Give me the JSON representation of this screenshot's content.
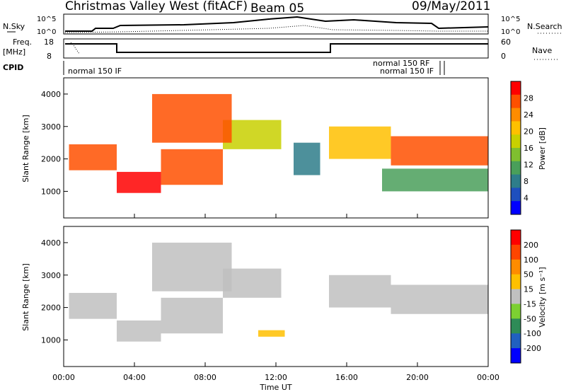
{
  "header": {
    "site": "Christmas Valley West (fitACF)",
    "beam": "Beam 05",
    "date": "09/May/2011"
  },
  "nsky_panel": {
    "left_label": "N.Sky",
    "right_label": "N.Search",
    "ticks": [
      "10^5",
      "10^0"
    ]
  },
  "freq_panel": {
    "left_label_1": "Freq.",
    "left_label_2": "[MHz]",
    "right_label": "Nave",
    "left_ticks": [
      "18",
      "8"
    ],
    "right_ticks": [
      "60",
      "0"
    ]
  },
  "cpid_panel": {
    "label": "CPID",
    "modes": [
      "normal 150 IF",
      "normal 150 RF",
      "normal 150 IF"
    ]
  },
  "chart_data": [
    {
      "type": "heatmap",
      "name": "power",
      "ylabel": "Slant Range [km]",
      "yticks": [
        1000,
        2000,
        3000,
        4000
      ],
      "ylim": [
        180,
        4500
      ],
      "xlim": [
        0,
        24
      ],
      "xtick_labels": [
        "00:00",
        "04:00",
        "08:00",
        "12:00",
        "16:00",
        "20:00",
        "00:00"
      ],
      "colorbar_label": "Power [dB]",
      "colorbar_ticks": [
        "28",
        "24",
        "20",
        "16",
        "12",
        "8",
        "4"
      ],
      "colorbar_colors": [
        "#0000ff",
        "#1e4fbe",
        "#2e7d8a",
        "#4a9f5a",
        "#7fbf2f",
        "#c8d000",
        "#ffc000",
        "#ff8c00",
        "#ff5000",
        "#ff0000"
      ],
      "bands": [
        {
          "from": 0.3,
          "to": 3.0,
          "lo": 1650,
          "hi": 2450,
          "color_index": 8
        },
        {
          "from": 3.0,
          "to": 5.5,
          "lo": 950,
          "hi": 1600,
          "color_index": 9
        },
        {
          "from": 5.5,
          "to": 9.0,
          "lo": 1200,
          "hi": 2300,
          "color_index": 8
        },
        {
          "from": 9.0,
          "to": 12.3,
          "lo": 2300,
          "hi": 3200,
          "color_index": 5
        },
        {
          "from": 5.0,
          "to": 9.5,
          "lo": 2500,
          "hi": 4000,
          "color_index": 8
        },
        {
          "from": 15.0,
          "to": 18.5,
          "lo": 2000,
          "hi": 3000,
          "color_index": 6
        },
        {
          "from": 18.5,
          "to": 24.0,
          "lo": 1800,
          "hi": 2700,
          "color_index": 8
        },
        {
          "from": 18.0,
          "to": 24.0,
          "lo": 1000,
          "hi": 1700,
          "color_index": 3
        },
        {
          "from": 13.0,
          "to": 14.5,
          "lo": 1500,
          "hi": 2500,
          "color_index": 2
        }
      ]
    },
    {
      "type": "heatmap",
      "name": "velocity",
      "ylabel": "Slant Range [km]",
      "yticks": [
        1000,
        2000,
        3000,
        4000
      ],
      "ylim": [
        180,
        4500
      ],
      "xlim": [
        0,
        24
      ],
      "xtick_labels": [
        "00:00",
        "04:00",
        "08:00",
        "12:00",
        "16:00",
        "20:00",
        "00:00"
      ],
      "xlabel": "Time UT",
      "colorbar_label": "Velocity [m s⁻¹]",
      "colorbar_ticks": [
        "200",
        "100",
        "50",
        "15",
        "-15",
        "-50",
        "-100",
        "-200"
      ],
      "colorbar_colors": [
        "#0000ff",
        "#2060c0",
        "#2e8b57",
        "#7cd032",
        "#c0c0c0",
        "#ffc000",
        "#ff8c00",
        "#ff4500",
        "#ff0000"
      ],
      "bands": [
        {
          "from": 0.3,
          "to": 3.0,
          "lo": 1650,
          "hi": 2450,
          "color_index": 4
        },
        {
          "from": 3.0,
          "to": 5.5,
          "lo": 950,
          "hi": 1600,
          "color_index": 4
        },
        {
          "from": 5.5,
          "to": 9.0,
          "lo": 1200,
          "hi": 2300,
          "color_index": 4
        },
        {
          "from": 9.0,
          "to": 12.3,
          "lo": 2300,
          "hi": 3200,
          "color_index": 4
        },
        {
          "from": 5.0,
          "to": 9.5,
          "lo": 2500,
          "hi": 4000,
          "color_index": 4
        },
        {
          "from": 15.0,
          "to": 18.5,
          "lo": 2000,
          "hi": 3000,
          "color_index": 4
        },
        {
          "from": 18.5,
          "to": 24.0,
          "lo": 1800,
          "hi": 2700,
          "color_index": 4
        },
        {
          "from": 11.0,
          "to": 12.5,
          "lo": 1100,
          "hi": 1300,
          "color_index": 5
        }
      ]
    }
  ]
}
